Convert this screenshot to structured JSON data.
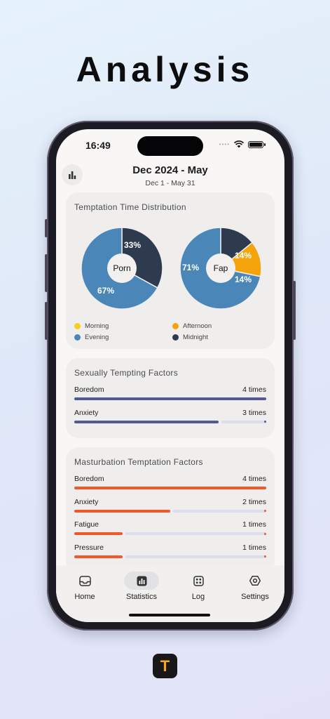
{
  "hero": {
    "title": "Analysis"
  },
  "status_bar": {
    "time": "16:49"
  },
  "header": {
    "title": "Dec 2024 - May",
    "subtitle": "Dec 1 - May 31"
  },
  "colors": {
    "morning": "#f7cf1c",
    "afternoon": "#f5a30a",
    "evening": "#4b86b8",
    "midnight": "#2e3b4f",
    "sexual_bar": "#535a93",
    "masturbation_bar": "#f2582c",
    "track": "#dcdcef"
  },
  "temptation_time": {
    "title": "Temptation Time Distribution",
    "legend": [
      {
        "label": "Morning",
        "color": "#f7cf1c"
      },
      {
        "label": "Afternoon",
        "color": "#f5a30a"
      },
      {
        "label": "Evening",
        "color": "#4b86b8"
      },
      {
        "label": "Midnight",
        "color": "#2e3b4f"
      }
    ],
    "charts": [
      {
        "center_label": "Porn",
        "slices": [
          {
            "category": "Midnight",
            "value": 33,
            "label": "33%"
          },
          {
            "category": "Evening",
            "value": 67,
            "label": "67%"
          }
        ]
      },
      {
        "center_label": "Fap",
        "slices": [
          {
            "category": "Midnight",
            "value": 14,
            "label": "14%"
          },
          {
            "category": "Afternoon",
            "value": 14,
            "label": "14%"
          },
          {
            "category": "Evening",
            "value": 71,
            "label": "71%"
          }
        ]
      }
    ]
  },
  "sexual_factors": {
    "title": "Sexually Tempting Factors",
    "items": [
      {
        "label": "Boredom",
        "count": "4 times",
        "fraction": 1.0
      },
      {
        "label": "Anxiety",
        "count": "3 times",
        "fraction": 0.75
      }
    ]
  },
  "masturbation_factors": {
    "title": "Masturbation Temptation Factors",
    "items": [
      {
        "label": "Boredom",
        "count": "4 times",
        "fraction": 1.0
      },
      {
        "label": "Anxiety",
        "count": "2 times",
        "fraction": 0.5
      },
      {
        "label": "Fatigue",
        "count": "1 times",
        "fraction": 0.25
      },
      {
        "label": "Pressure",
        "count": "1 times",
        "fraction": 0.25
      }
    ]
  },
  "tabs": [
    {
      "label": "Home",
      "icon": "inbox-icon",
      "active": false
    },
    {
      "label": "Statistics",
      "icon": "bar-chart-icon",
      "active": true
    },
    {
      "label": "Log",
      "icon": "grid-dots-icon",
      "active": false
    },
    {
      "label": "Settings",
      "icon": "gear-icon",
      "active": false
    }
  ],
  "app_logo": {
    "letter": "T"
  }
}
